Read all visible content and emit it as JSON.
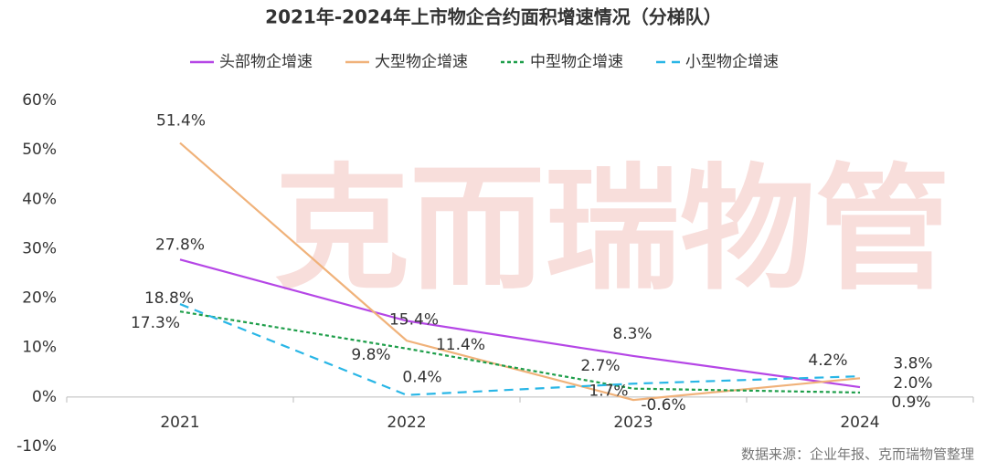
{
  "chart_data": {
    "type": "line",
    "title": "2021年-2024年上市物企合约面积增速情况（分梯队）",
    "categories": [
      "2021",
      "2022",
      "2023",
      "2024"
    ],
    "series": [
      {
        "name": "头部物企增速",
        "color": "#b546e6",
        "dash": "solid",
        "values": [
          27.8,
          15.4,
          8.3,
          2.0
        ],
        "value_labels": [
          "27.8%",
          "15.4%",
          "8.3%",
          "2.0%"
        ]
      },
      {
        "name": "大型物企增速",
        "color": "#f0b27a",
        "dash": "solid",
        "values": [
          51.4,
          11.4,
          -0.6,
          3.8
        ],
        "value_labels": [
          "51.4%",
          "11.4%",
          "-0.6%",
          "3.8%"
        ]
      },
      {
        "name": "中型物企增速",
        "color": "#1e9e4a",
        "dash": "dotted",
        "values": [
          17.3,
          9.8,
          1.7,
          0.9
        ],
        "value_labels": [
          "17.3%",
          "9.8%",
          "1.7%",
          "0.9%"
        ]
      },
      {
        "name": "小型物企增速",
        "color": "#29b6e6",
        "dash": "dashed",
        "values": [
          18.8,
          0.4,
          2.7,
          4.2
        ],
        "value_labels": [
          "18.8%",
          "0.4%",
          "2.7%",
          "4.2%"
        ]
      }
    ],
    "ylim": [
      -10,
      60
    ],
    "yticks": [
      {
        "value": -10,
        "label": "-10%"
      },
      {
        "value": 0,
        "label": "0%"
      },
      {
        "value": 10,
        "label": "10%"
      },
      {
        "value": 20,
        "label": "20%"
      },
      {
        "value": 30,
        "label": "30%"
      },
      {
        "value": 40,
        "label": "40%"
      },
      {
        "value": 50,
        "label": "50%"
      },
      {
        "value": 60,
        "label": "60%"
      }
    ],
    "watermark": "克而瑞物管",
    "source": "数据来源：企业年报、克而瑞物管整理"
  }
}
